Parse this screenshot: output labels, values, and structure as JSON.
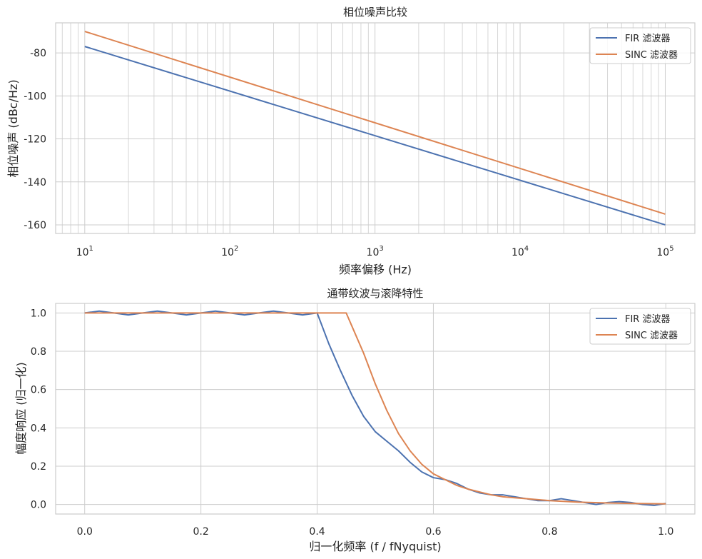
{
  "chart_data": [
    {
      "type": "line",
      "title": "相位噪声比较",
      "xlabel": "频率偏移 (Hz)",
      "ylabel": "相位噪声 (dBc/Hz)",
      "xscale": "log",
      "xlim": [
        6.3,
        160000
      ],
      "ylim": [
        -164,
        -66
      ],
      "xticks": [
        10,
        100,
        1000,
        10000,
        100000
      ],
      "xtick_labels": [
        [
          "10",
          "1"
        ],
        [
          "10",
          "2"
        ],
        [
          "10",
          "3"
        ],
        [
          "10",
          "4"
        ],
        [
          "10",
          "5"
        ]
      ],
      "yticks": [
        -80,
        -100,
        -120,
        -140,
        -160
      ],
      "ytick_labels": [
        "-80",
        "-100",
        "-120",
        "-140",
        "-160"
      ],
      "grid": "major and minor (x), major (y)",
      "legend": "top-right",
      "series": [
        {
          "name": "FIR 滤波器",
          "color": "#4c72b0",
          "x": [
            10,
            100000
          ],
          "y": [
            -77,
            -160
          ]
        },
        {
          "name": "SINC 滤波器",
          "color": "#dd8452",
          "x": [
            10,
            100000
          ],
          "y": [
            -70,
            -155
          ]
        }
      ]
    },
    {
      "type": "line",
      "title": "通带纹波与滚降特性",
      "xlabel": "归一化频率 (f / fNyquist)",
      "ylabel": "幅度响应 (归一化)",
      "xlim": [
        -0.05,
        1.05
      ],
      "ylim": [
        -0.05,
        1.05
      ],
      "xticks": [
        0.0,
        0.2,
        0.4,
        0.6,
        0.8,
        1.0
      ],
      "xtick_labels": [
        "0.0",
        "0.2",
        "0.4",
        "0.6",
        "0.8",
        "1.0"
      ],
      "yticks": [
        0.0,
        0.2,
        0.4,
        0.6,
        0.8,
        1.0
      ],
      "ytick_labels": [
        "0.0",
        "0.2",
        "0.4",
        "0.6",
        "0.8",
        "1.0"
      ],
      "grid": "major",
      "legend": "top-right",
      "series": [
        {
          "name": "FIR 滤波器",
          "color": "#4c72b0",
          "x": [
            0.0,
            0.025,
            0.05,
            0.075,
            0.1,
            0.125,
            0.15,
            0.175,
            0.2,
            0.225,
            0.25,
            0.275,
            0.3,
            0.325,
            0.35,
            0.375,
            0.4,
            0.42,
            0.44,
            0.46,
            0.48,
            0.5,
            0.52,
            0.54,
            0.56,
            0.58,
            0.6,
            0.62,
            0.64,
            0.66,
            0.68,
            0.7,
            0.72,
            0.74,
            0.76,
            0.78,
            0.8,
            0.82,
            0.84,
            0.86,
            0.88,
            0.9,
            0.92,
            0.94,
            0.96,
            0.98,
            1.0
          ],
          "y": [
            1.0,
            1.01,
            1.0,
            0.99,
            1.0,
            1.01,
            1.0,
            0.99,
            1.0,
            1.01,
            1.0,
            0.99,
            1.0,
            1.01,
            1.0,
            0.99,
            1.0,
            0.84,
            0.7,
            0.57,
            0.46,
            0.38,
            0.33,
            0.28,
            0.22,
            0.17,
            0.14,
            0.13,
            0.11,
            0.08,
            0.06,
            0.05,
            0.05,
            0.04,
            0.03,
            0.02,
            0.02,
            0.03,
            0.02,
            0.01,
            0.0,
            0.01,
            0.015,
            0.01,
            0.0,
            -0.005,
            0.005
          ]
        },
        {
          "name": "SINC 滤波器",
          "color": "#dd8452",
          "x": [
            0.0,
            0.45,
            0.46,
            0.48,
            0.5,
            0.52,
            0.54,
            0.56,
            0.58,
            0.6,
            0.62,
            0.64,
            0.66,
            0.68,
            0.7,
            0.72,
            0.74,
            0.76,
            0.78,
            0.8,
            0.85,
            0.9,
            0.95,
            1.0
          ],
          "y": [
            1.0,
            1.0,
            0.93,
            0.79,
            0.63,
            0.49,
            0.37,
            0.28,
            0.21,
            0.16,
            0.13,
            0.1,
            0.08,
            0.065,
            0.05,
            0.04,
            0.035,
            0.03,
            0.025,
            0.02,
            0.012,
            0.008,
            0.005,
            0.003
          ]
        }
      ]
    }
  ]
}
